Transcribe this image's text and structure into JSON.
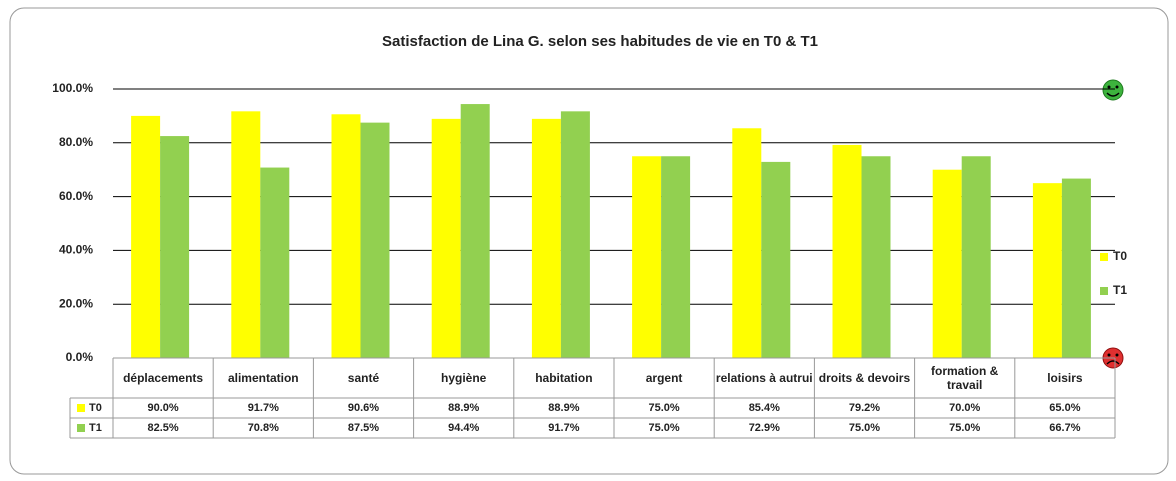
{
  "chart_data": {
    "type": "bar",
    "title": "Satisfaction  de Lina G. selon ses habitudes de vie en T0 & T1",
    "categories": [
      "déplacements",
      "alimentation",
      "santé",
      "hygiène",
      "habitation",
      "argent",
      "relations à autrui",
      "droits & devoirs",
      "formation & travail",
      "loisirs"
    ],
    "series": [
      {
        "name": "T0",
        "color": "#ffff00",
        "values": [
          90.0,
          91.7,
          90.6,
          88.9,
          88.9,
          75.0,
          85.4,
          79.2,
          70.0,
          65.0
        ],
        "value_labels": [
          "90.0%",
          "91.7%",
          "90.6%",
          "88.9%",
          "88.9%",
          "75.0%",
          "85.4%",
          "79.2%",
          "70.0%",
          "65.0%"
        ]
      },
      {
        "name": "T1",
        "color": "#92d050",
        "values": [
          82.5,
          70.8,
          87.5,
          94.4,
          91.7,
          75.0,
          72.9,
          75.0,
          75.0,
          66.7
        ],
        "value_labels": [
          "82.5%",
          "70.8%",
          "87.5%",
          "94.4%",
          "91.7%",
          "75.0%",
          "72.9%",
          "75.0%",
          "75.0%",
          "66.7%"
        ]
      }
    ],
    "ylim": [
      0,
      100
    ],
    "yticks": [
      {
        "value": 0,
        "label": "0.0%"
      },
      {
        "value": 20,
        "label": "20.0%"
      },
      {
        "value": 40,
        "label": "40.0%"
      },
      {
        "value": 60,
        "label": "60.0%"
      },
      {
        "value": 80,
        "label": "80.0%"
      },
      {
        "value": 100,
        "label": "100.0%"
      }
    ],
    "grid": true,
    "legend": "right"
  }
}
